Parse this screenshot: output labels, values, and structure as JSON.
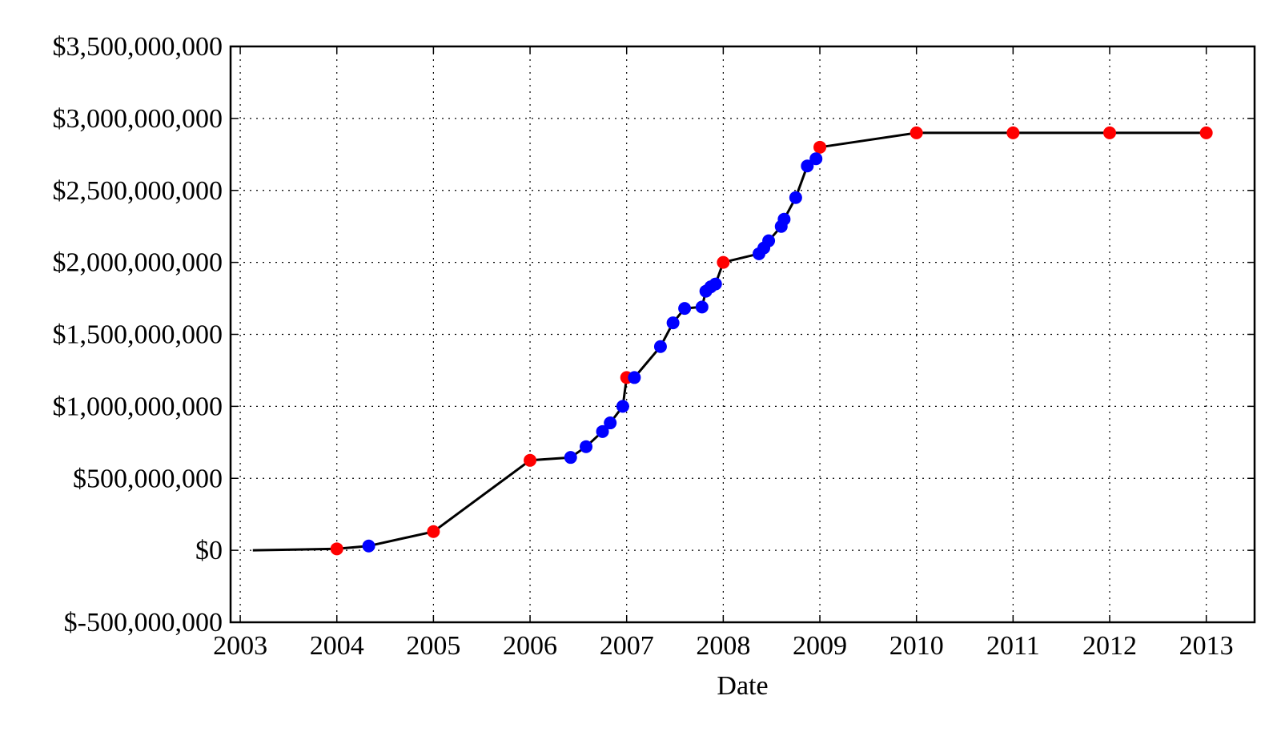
{
  "chart_data": {
    "type": "line",
    "title": "",
    "xlabel": "Date",
    "ylabel": "",
    "grid": true,
    "grid_style": "dotted",
    "xlim": [
      2002.9,
      2013.5
    ],
    "ylim": [
      -500000000,
      3500000000
    ],
    "x_ticks": [
      2003,
      2004,
      2005,
      2006,
      2007,
      2008,
      2009,
      2010,
      2011,
      2012,
      2013
    ],
    "x_tick_labels": [
      "2003",
      "2004",
      "2005",
      "2006",
      "2007",
      "2008",
      "2009",
      "2010",
      "2011",
      "2012",
      "2013"
    ],
    "y_ticks": [
      -500000000,
      0,
      500000000,
      1000000000,
      1500000000,
      2000000000,
      2500000000,
      3000000000,
      3500000000
    ],
    "y_tick_labels": [
      "$-500,000,000",
      "$0",
      "$500,000,000",
      "$1,000,000,000",
      "$1,500,000,000",
      "$2,000,000,000",
      "$2,500,000,000",
      "$3,000,000,000",
      "$3,500,000,000"
    ],
    "colors": {
      "line": "#000000",
      "red_marker": "#ff0000",
      "blue_marker": "#0000ff"
    },
    "series": [
      {
        "style": "line",
        "color": "#000000",
        "x": [
          2003.13,
          2004.0,
          2004.33,
          2005.0,
          2006.0,
          2006.42,
          2006.58,
          2006.75,
          2006.83,
          2006.96,
          2007.0,
          2007.08,
          2007.35,
          2007.48,
          2007.6,
          2007.78,
          2007.82,
          2007.87,
          2007.92,
          2008.0,
          2008.37,
          2008.42,
          2008.47,
          2008.6,
          2008.63,
          2008.75,
          2008.87,
          2008.96,
          2009.0,
          2010.0,
          2011.0,
          2012.0,
          2013.0
        ],
        "y": [
          0,
          10000000,
          30000000,
          130000000,
          625000000,
          645000000,
          720000000,
          825000000,
          885000000,
          1000000000,
          1200000000,
          1200000000,
          1415000000,
          1580000000,
          1680000000,
          1690000000,
          1800000000,
          1830000000,
          1850000000,
          2000000000,
          2060000000,
          2100000000,
          2150000000,
          2250000000,
          2300000000,
          2450000000,
          2670000000,
          2720000000,
          2800000000,
          2900000000,
          2900000000,
          2900000000,
          2900000000
        ]
      },
      {
        "style": "marker",
        "color": "#ff0000",
        "x": [
          2004.0,
          2005.0,
          2006.0,
          2007.0,
          2008.0,
          2009.0,
          2010.0,
          2011.0,
          2012.0,
          2013.0
        ],
        "y": [
          10000000,
          130000000,
          625000000,
          1200000000,
          2000000000,
          2800000000,
          2900000000,
          2900000000,
          2900000000,
          2900000000
        ]
      },
      {
        "style": "marker",
        "color": "#0000ff",
        "x": [
          2004.33,
          2006.42,
          2006.58,
          2006.75,
          2006.83,
          2006.96,
          2007.08,
          2007.35,
          2007.48,
          2007.6,
          2007.78,
          2007.82,
          2007.87,
          2007.92,
          2008.37,
          2008.42,
          2008.47,
          2008.6,
          2008.63,
          2008.75,
          2008.87,
          2008.96
        ],
        "y": [
          30000000,
          645000000,
          720000000,
          825000000,
          885000000,
          1000000000,
          1200000000,
          1415000000,
          1580000000,
          1680000000,
          1690000000,
          1800000000,
          1830000000,
          1850000000,
          2060000000,
          2100000000,
          2150000000,
          2250000000,
          2300000000,
          2450000000,
          2670000000,
          2720000000
        ]
      }
    ]
  }
}
